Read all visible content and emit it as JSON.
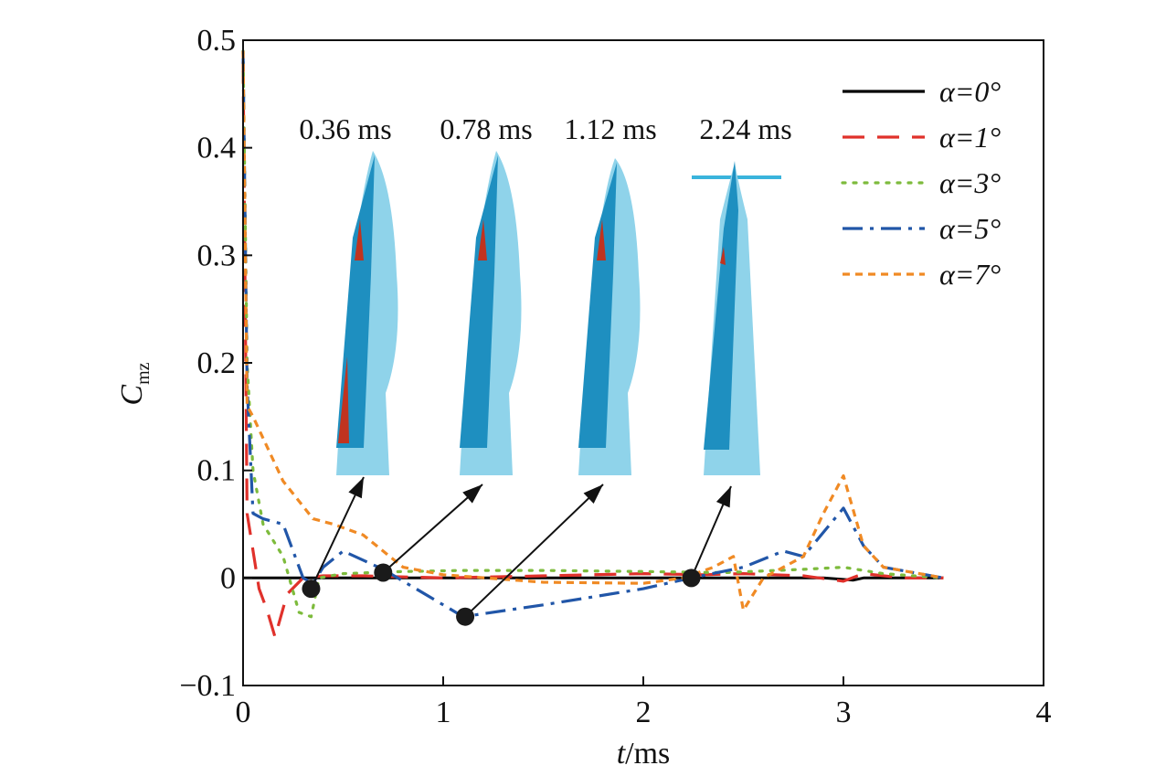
{
  "chart_data": {
    "type": "line",
    "xlabel_main": "t",
    "xlabel_unit": "/ms",
    "ylabel_main": "C",
    "ylabel_sub": "mz",
    "xlim": [
      0,
      4
    ],
    "ylim": [
      -0.1,
      0.5
    ],
    "x_ticks": [
      "0",
      "1",
      "2",
      "3",
      "4"
    ],
    "y_ticks": [
      "−0.1",
      "0",
      "0.1",
      "0.2",
      "0.3",
      "0.4",
      "0.5"
    ],
    "y_tick_values": [
      -0.1,
      0,
      0.1,
      0.2,
      0.3,
      0.4,
      0.5
    ],
    "grid": false,
    "legend_position": "top-right",
    "series": [
      {
        "name": "α=0°",
        "color": "#000000",
        "dash": "solid",
        "x": [
          0,
          0.05,
          0.2,
          0.5,
          1.0,
          1.5,
          2.0,
          2.5,
          2.9,
          3.05,
          3.1,
          3.2,
          3.5
        ],
        "y": [
          0.0,
          0.0,
          0.0,
          0.0,
          0.0,
          0.0,
          0.0,
          0.0,
          0.0,
          -0.002,
          0.0,
          0.0,
          0.0
        ]
      },
      {
        "name": "α=1°",
        "color": "#e0312b",
        "dash": "long-dash",
        "x": [
          0,
          0.02,
          0.08,
          0.12,
          0.16,
          0.22,
          0.3,
          0.4,
          0.6,
          1.0,
          1.5,
          2.0,
          2.3,
          2.5,
          2.8,
          3.0,
          3.1,
          3.3,
          3.5
        ],
        "y": [
          0.48,
          0.06,
          -0.01,
          -0.03,
          -0.055,
          -0.015,
          0.0,
          0.002,
          0.002,
          0.0,
          0.002,
          0.004,
          0.003,
          0.004,
          0.002,
          -0.003,
          0.004,
          0.0,
          0.0
        ]
      },
      {
        "name": "α=3°",
        "color": "#7dbb3c",
        "dash": "dotted",
        "x": [
          0,
          0.02,
          0.05,
          0.1,
          0.2,
          0.28,
          0.34,
          0.38,
          0.5,
          0.8,
          1.1,
          1.5,
          2.0,
          2.4,
          2.8,
          3.0,
          3.2,
          3.5
        ],
        "y": [
          0.49,
          0.2,
          0.1,
          0.05,
          0.02,
          -0.032,
          -0.036,
          0.0,
          0.004,
          0.006,
          0.007,
          0.007,
          0.006,
          0.005,
          0.008,
          0.01,
          0.004,
          0.0
        ]
      },
      {
        "name": "α=5°",
        "color": "#2156a8",
        "dash": "dash-dot",
        "x": [
          0,
          0.02,
          0.05,
          0.1,
          0.2,
          0.3,
          0.35,
          0.4,
          0.5,
          0.7,
          1.1,
          1.5,
          2.0,
          2.24,
          2.5,
          2.7,
          2.8,
          3.0,
          3.1,
          3.2,
          3.5
        ],
        "y": [
          0.49,
          0.18,
          0.06,
          0.055,
          0.05,
          0.0,
          -0.005,
          0.01,
          0.025,
          0.008,
          -0.036,
          -0.025,
          -0.01,
          0.0,
          0.01,
          0.025,
          0.02,
          0.065,
          0.03,
          0.01,
          0.0
        ]
      },
      {
        "name": "α=7°",
        "color": "#f08a24",
        "dash": "short-dash",
        "x": [
          0,
          0.02,
          0.05,
          0.1,
          0.2,
          0.35,
          0.45,
          0.6,
          0.8,
          1.0,
          1.5,
          2.0,
          2.2,
          2.35,
          2.45,
          2.5,
          2.6,
          2.8,
          2.9,
          3.0,
          3.1,
          3.2,
          3.5
        ],
        "y": [
          0.49,
          0.16,
          0.15,
          0.13,
          0.09,
          0.055,
          0.05,
          0.04,
          0.01,
          0.003,
          -0.004,
          -0.005,
          0.0,
          0.01,
          0.02,
          -0.03,
          0.0,
          0.02,
          0.06,
          0.095,
          0.03,
          0.01,
          0.0
        ]
      }
    ],
    "markers": [
      {
        "time": "0.36 ms",
        "x": 0.34,
        "y": -0.01
      },
      {
        "time": "0.78 ms",
        "x": 0.7,
        "y": 0.005
      },
      {
        "time": "1.12 ms",
        "x": 1.11,
        "y": -0.036
      },
      {
        "time": "2.24 ms",
        "x": 2.24,
        "y": 0.0
      }
    ],
    "marker_color": "#1a1a1a",
    "inset_colors": {
      "body": "#3ab4dc",
      "body_light": "#8fd3ea",
      "body_dark": "#1e8fc0",
      "hot": "#c0331f"
    }
  }
}
